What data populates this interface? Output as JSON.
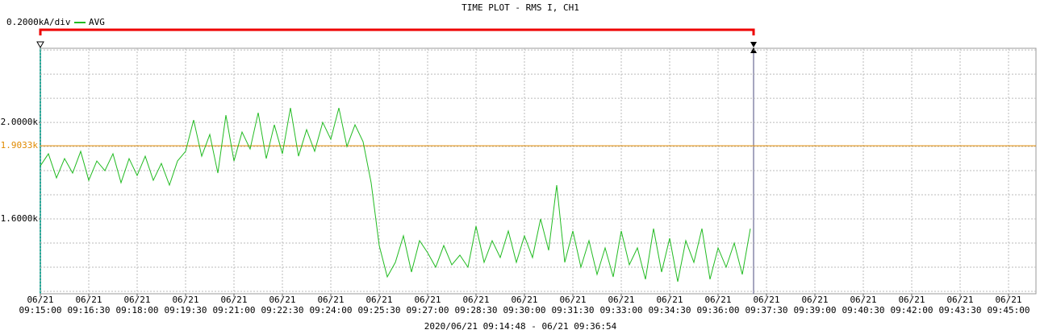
{
  "chart_data": {
    "type": "line",
    "title": "TIME PLOT - RMS  I, CH1",
    "scale_label": "0.2000kA/div",
    "time_range": "2020/06/21 09:14:48 - 06/21 09:36:54",
    "x": [
      "06/21 09:15:00",
      "06/21 09:15:15",
      "06/21 09:15:30",
      "06/21 09:15:45",
      "06/21 09:16:00",
      "06/21 09:16:15",
      "06/21 09:16:30",
      "06/21 09:16:45",
      "06/21 09:17:00",
      "06/21 09:17:15",
      "06/21 09:17:30",
      "06/21 09:17:45",
      "06/21 09:18:00",
      "06/21 09:18:15",
      "06/21 09:18:30",
      "06/21 09:18:45",
      "06/21 09:19:00",
      "06/21 09:19:15",
      "06/21 09:19:30",
      "06/21 09:19:45",
      "06/21 09:20:00",
      "06/21 09:20:15",
      "06/21 09:20:30",
      "06/21 09:20:45",
      "06/21 09:21:00",
      "06/21 09:21:15",
      "06/21 09:21:30",
      "06/21 09:21:45",
      "06/21 09:22:00",
      "06/21 09:22:15",
      "06/21 09:22:30",
      "06/21 09:22:45",
      "06/21 09:23:00",
      "06/21 09:23:15",
      "06/21 09:23:30",
      "06/21 09:23:45",
      "06/21 09:24:00",
      "06/21 09:24:15",
      "06/21 09:24:30",
      "06/21 09:24:45",
      "06/21 09:25:00",
      "06/21 09:25:15",
      "06/21 09:25:30",
      "06/21 09:25:45",
      "06/21 09:26:00",
      "06/21 09:26:15",
      "06/21 09:26:30",
      "06/21 09:26:45",
      "06/21 09:27:00",
      "06/21 09:27:15",
      "06/21 09:27:30",
      "06/21 09:27:45",
      "06/21 09:28:00",
      "06/21 09:28:15",
      "06/21 09:28:30",
      "06/21 09:28:45",
      "06/21 09:29:00",
      "06/21 09:29:15",
      "06/21 09:29:30",
      "06/21 09:29:45",
      "06/21 09:30:00",
      "06/21 09:30:15",
      "06/21 09:30:30",
      "06/21 09:30:45",
      "06/21 09:31:00",
      "06/21 09:31:15",
      "06/21 09:31:30",
      "06/21 09:31:45",
      "06/21 09:32:00",
      "06/21 09:32:15",
      "06/21 09:32:30",
      "06/21 09:32:45",
      "06/21 09:33:00",
      "06/21 09:33:15",
      "06/21 09:33:30",
      "06/21 09:33:45",
      "06/21 09:34:00",
      "06/21 09:34:15",
      "06/21 09:34:30",
      "06/21 09:34:45",
      "06/21 09:35:00",
      "06/21 09:35:15",
      "06/21 09:35:30",
      "06/21 09:35:45",
      "06/21 09:36:00",
      "06/21 09:36:15",
      "06/21 09:36:30",
      "06/21 09:36:45",
      "06/21 09:37:00"
    ],
    "series": [
      {
        "name": "AVG",
        "color": "#22bb22",
        "values": [
          1820,
          1870,
          1770,
          1850,
          1790,
          1880,
          1760,
          1840,
          1800,
          1870,
          1750,
          1850,
          1780,
          1860,
          1760,
          1830,
          1740,
          1840,
          1880,
          2010,
          1860,
          1950,
          1790,
          2030,
          1840,
          1960,
          1890,
          2040,
          1850,
          1990,
          1870,
          2060,
          1860,
          1970,
          1880,
          2000,
          1930,
          2060,
          1900,
          1990,
          1920,
          1750,
          1490,
          1360,
          1420,
          1530,
          1380,
          1510,
          1460,
          1400,
          1490,
          1410,
          1450,
          1400,
          1570,
          1420,
          1510,
          1440,
          1550,
          1420,
          1530,
          1440,
          1600,
          1470,
          1740,
          1420,
          1550,
          1400,
          1510,
          1370,
          1480,
          1360,
          1550,
          1410,
          1480,
          1350,
          1560,
          1380,
          1520,
          1340,
          1510,
          1420,
          1560,
          1350,
          1480,
          1400,
          1500,
          1370,
          1560
        ]
      }
    ],
    "xlim": [
      "06/21 09:15:00",
      "06/21 09:45:51"
    ],
    "xticks": [
      {
        "value": "06/21 09:15:00",
        "label": [
          "06/21",
          "09:15:00"
        ]
      },
      {
        "value": "06/21 09:16:30",
        "label": [
          "06/21",
          "09:16:30"
        ]
      },
      {
        "value": "06/21 09:18:00",
        "label": [
          "06/21",
          "09:18:00"
        ]
      },
      {
        "value": "06/21 09:19:30",
        "label": [
          "06/21",
          "09:19:30"
        ]
      },
      {
        "value": "06/21 09:21:00",
        "label": [
          "06/21",
          "09:21:00"
        ]
      },
      {
        "value": "06/21 09:22:30",
        "label": [
          "06/21",
          "09:22:30"
        ]
      },
      {
        "value": "06/21 09:24:00",
        "label": [
          "06/21",
          "09:24:00"
        ]
      },
      {
        "value": "06/21 09:25:30",
        "label": [
          "06/21",
          "09:25:30"
        ]
      },
      {
        "value": "06/21 09:27:00",
        "label": [
          "06/21",
          "09:27:00"
        ]
      },
      {
        "value": "06/21 09:28:30",
        "label": [
          "06/21",
          "09:28:30"
        ]
      },
      {
        "value": "06/21 09:30:00",
        "label": [
          "06/21",
          "09:30:00"
        ]
      },
      {
        "value": "06/21 09:31:30",
        "label": [
          "06/21",
          "09:31:30"
        ]
      },
      {
        "value": "06/21 09:33:00",
        "label": [
          "06/21",
          "09:33:00"
        ]
      },
      {
        "value": "06/21 09:34:30",
        "label": [
          "06/21",
          "09:34:30"
        ]
      },
      {
        "value": "06/21 09:36:00",
        "label": [
          "06/21",
          "09:36:00"
        ]
      },
      {
        "value": "06/21 09:37:30",
        "label": [
          "06/21",
          "09:37:30"
        ]
      },
      {
        "value": "06/21 09:39:00",
        "label": [
          "06/21",
          "09:39:00"
        ]
      },
      {
        "value": "06/21 09:40:30",
        "label": [
          "06/21",
          "09:40:30"
        ]
      },
      {
        "value": "06/21 09:42:00",
        "label": [
          "06/21",
          "09:42:00"
        ]
      },
      {
        "value": "06/21 09:43:30",
        "label": [
          "06/21",
          "09:43:30"
        ]
      },
      {
        "value": "06/21 09:45:00",
        "label": [
          "06/21",
          "09:45:00"
        ]
      }
    ],
    "ylim": [
      1290,
      2307
    ],
    "yticks": [
      {
        "value": 2000,
        "label": "2.0000k"
      },
      {
        "value": 1600,
        "label": "1.6000k"
      }
    ],
    "ygrid": [
      1300,
      1400,
      1500,
      1600,
      1700,
      1800,
      1900,
      2000,
      2100,
      2200,
      2300
    ],
    "reference_line": {
      "value": 1903.3,
      "label": "1.9033k",
      "color": "#e08a00"
    },
    "grid": true
  }
}
